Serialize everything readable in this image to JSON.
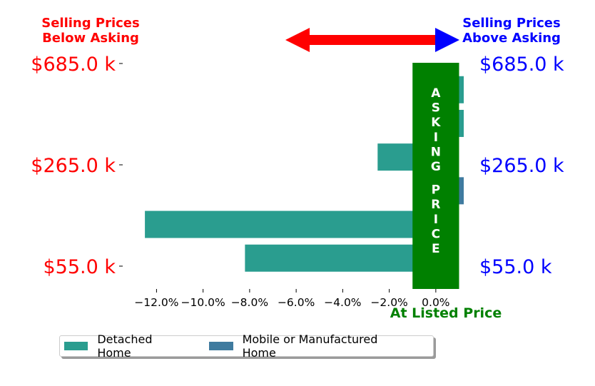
{
  "chart_data": {
    "type": "bar",
    "orientation": "horizontal",
    "title_left": [
      "Selling Prices",
      "Below Asking"
    ],
    "title_right": [
      "Selling Prices",
      "Above Asking"
    ],
    "center_label": "At Listed Price",
    "asking_band_text": "ASKING PRICE",
    "xlabel": "",
    "ylabel": "",
    "xlim": [
      -13.3,
      1.2
    ],
    "x_ticks": [
      -12,
      -10,
      -8,
      -6,
      -4,
      -2,
      0
    ],
    "x_tick_labels": [
      "−12.0%",
      "−10.0%",
      "−8.0%",
      "−6.0%",
      "−4.0%",
      "−2.0%",
      "0.0%"
    ],
    "y_tick_labels": [
      "$685.0 k",
      "$265.0 k",
      "$55.0 k"
    ],
    "y_tick_rows": [
      0,
      3,
      6
    ],
    "bars": [
      {
        "row": 0.8,
        "value": 1.2,
        "series": "Detached Home"
      },
      {
        "row": 1.8,
        "value": 1.2,
        "series": "Detached Home"
      },
      {
        "row": 2.8,
        "value": -2.5,
        "series": "Detached Home"
      },
      {
        "row": 3.8,
        "value": 1.2,
        "series": "Mobile or Manufactured Home"
      },
      {
        "row": 4.8,
        "value": -12.5,
        "series": "Detached Home"
      },
      {
        "row": 5.8,
        "value": -8.2,
        "series": "Detached Home"
      }
    ],
    "series": [
      {
        "name": "Detached Home",
        "color": "#2a9d8f"
      },
      {
        "name": "Mobile or Manufactured Home",
        "color": "#3f7b9f"
      }
    ],
    "legend_position": "bottom-left",
    "grid": false,
    "colors": {
      "below": "#ff0000",
      "above": "#0000ff",
      "asking": "#008000"
    }
  }
}
